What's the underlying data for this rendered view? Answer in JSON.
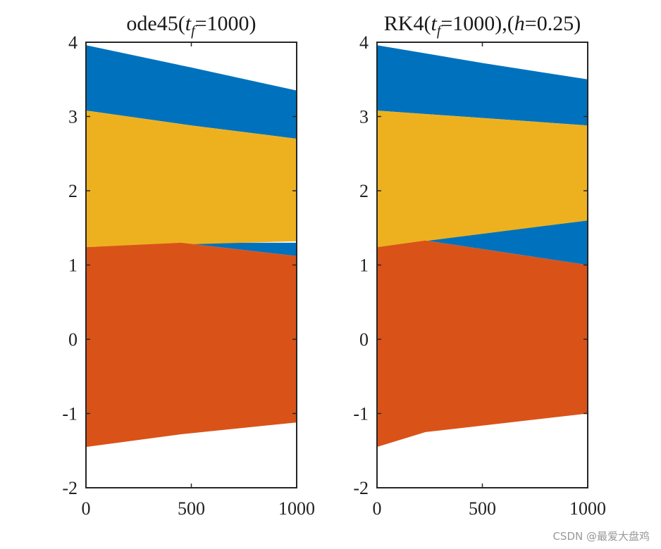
{
  "chart_data": [
    {
      "type": "area",
      "title": "ode45(t_f=1000)",
      "title_parts": {
        "prefix": "ode45(",
        "var": "t",
        "sub": "f",
        "suffix": "=1000)"
      },
      "xlabel": "",
      "ylabel": "",
      "xlim": [
        0,
        1000
      ],
      "ylim": [
        -2,
        4
      ],
      "xticks": [
        "0",
        "500",
        "1000"
      ],
      "yticks": [
        "-2",
        "-1",
        "0",
        "1",
        "2",
        "3",
        "4"
      ],
      "grid": false,
      "series": [
        {
          "name": "series-blue",
          "color": "#0072BD",
          "x": [
            0,
            500,
            1000
          ],
          "upper": [
            3.96,
            3.66,
            3.35
          ],
          "lower": [
            3.08,
            2.88,
            2.7
          ],
          "secondary": {
            "x": [
              450,
              1000
            ],
            "upper": [
              1.3,
              1.3
            ],
            "lower": [
              1.3,
              1.12
            ]
          }
        },
        {
          "name": "series-yellow",
          "color": "#EDB120",
          "x": [
            0,
            500,
            1000
          ],
          "upper": [
            3.08,
            2.88,
            2.7
          ],
          "lower": [
            1.24,
            1.28,
            1.32
          ]
        },
        {
          "name": "series-orange",
          "color": "#D95319",
          "x": [
            0,
            450,
            1000
          ],
          "upper": [
            1.24,
            1.3,
            1.12
          ],
          "lower": [
            -1.45,
            -1.28,
            -1.12
          ]
        }
      ]
    },
    {
      "type": "area",
      "title": "RK4(t_f=1000),(h=0.25)",
      "title_parts": {
        "prefix": "RK4(",
        "var": "t",
        "sub": "f",
        "suffix": "=1000),(",
        "var2": "h",
        "suffix2": "=0.25)"
      },
      "xlabel": "",
      "ylabel": "",
      "xlim": [
        0,
        1000
      ],
      "ylim": [
        -2,
        4
      ],
      "xticks": [
        "0",
        "500",
        "1000"
      ],
      "yticks": [
        "-2",
        "-1",
        "0",
        "1",
        "2",
        "3",
        "4"
      ],
      "grid": false,
      "series": [
        {
          "name": "series-blue",
          "color": "#0072BD",
          "x": [
            0,
            500,
            1000
          ],
          "upper": [
            3.96,
            3.72,
            3.5
          ],
          "lower": [
            3.08,
            2.98,
            2.88
          ],
          "secondary": {
            "x": [
              230,
              1000
            ],
            "upper": [
              1.33,
              1.6
            ],
            "lower": [
              1.33,
              1.0
            ]
          }
        },
        {
          "name": "series-yellow",
          "color": "#EDB120",
          "x": [
            0,
            500,
            1000
          ],
          "upper": [
            3.08,
            2.98,
            2.88
          ],
          "lower": [
            1.24,
            1.42,
            1.6
          ]
        },
        {
          "name": "series-orange",
          "color": "#D95319",
          "x": [
            0,
            230,
            1000
          ],
          "upper": [
            1.24,
            1.33,
            1.0
          ],
          "lower": [
            -1.45,
            -1.25,
            -1.0
          ]
        }
      ]
    }
  ],
  "watermark": "CSDN @最爱大盘鸡"
}
